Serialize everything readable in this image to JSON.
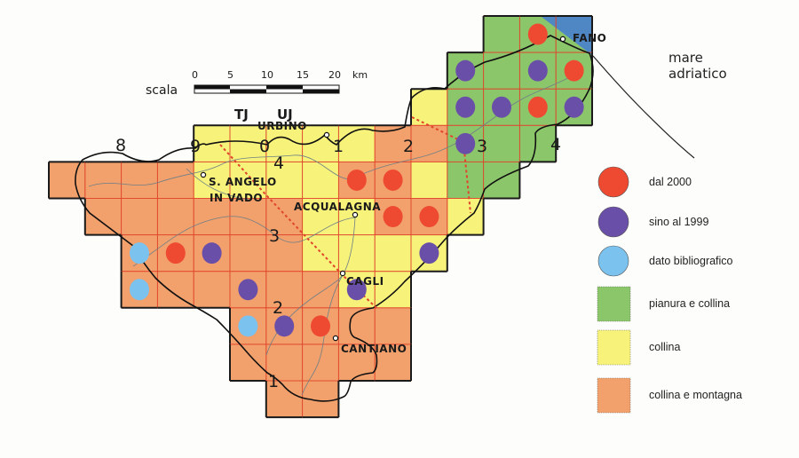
{
  "map": {
    "colors": {
      "pianura_e_collina": "#8cc66a",
      "collina": "#f6f27a",
      "collina_e_montagna": "#f2a06c",
      "sea": "#4f86c4",
      "dal_2000": "#ee4a32",
      "sino_al_1999": "#6a4fa8",
      "dato_bibliografico": "#7cc2ef",
      "grid_line": "#e0452c"
    },
    "cells": [
      "............GGG.",
      "...........GGGG.",
      "..........YGGGG.",
      "....YYYYYOOGGG..",
      "OOOOYYYYOOYGG...",
      ".OOOOOOYYOOY....",
      "..OOOOOYYYY.....",
      "..OOOOOOYY......",
      ".....OOOOO......",
      ".....OOOOO......",
      "......OO........"
    ],
    "cell_key": {
      "G": "pianura e collina",
      "Y": "collina",
      "O": "collina e montagna"
    },
    "records": {
      "dal_2000": [
        [
          13,
          0
        ],
        [
          14,
          1
        ],
        [
          13,
          2
        ],
        [
          8,
          4
        ],
        [
          9,
          4
        ],
        [
          9,
          5
        ],
        [
          10,
          5
        ],
        [
          3,
          6
        ],
        [
          7,
          8
        ]
      ],
      "sino_al_1999": [
        [
          11,
          1
        ],
        [
          13,
          1
        ],
        [
          11,
          2
        ],
        [
          12,
          2
        ],
        [
          14,
          2
        ],
        [
          11,
          3
        ],
        [
          4,
          6
        ],
        [
          10,
          6
        ],
        [
          5,
          7
        ],
        [
          8,
          7
        ],
        [
          6,
          8
        ]
      ],
      "dato_bibliografico": [
        [
          2,
          6
        ],
        [
          2,
          7
        ],
        [
          5,
          8
        ]
      ]
    },
    "scale": {
      "label": "scala",
      "ticks": [
        "0",
        "5",
        "10",
        "15",
        "20"
      ],
      "unit": "km"
    },
    "zones": [
      "TJ",
      "UJ"
    ],
    "grid_col_numbers": [
      "8",
      "9",
      "0",
      "1",
      "2",
      "3",
      "4"
    ],
    "grid_row_numbers": [
      "4",
      "3",
      "2",
      "1"
    ],
    "towns": {
      "urbino": "URBINO",
      "fano": "FANO",
      "sant_angelo_1": "S. ANGELO",
      "sant_angelo_2": "IN VADO",
      "acqualagna": "ACQUALAGNA",
      "cagli": "CAGLI",
      "cantiano": "CANTIANO"
    },
    "sea_label": [
      "mare",
      "adriatico"
    ]
  },
  "legend": [
    {
      "label": "dal 2000",
      "shape": "circle",
      "color": "#ee4a32"
    },
    {
      "label": "sino al 1999",
      "shape": "circle",
      "color": "#6a4fa8"
    },
    {
      "label": "dato bibliografico",
      "shape": "circle",
      "color": "#7cc2ef"
    },
    {
      "label": "pianura e collina",
      "shape": "square",
      "color": "#8cc66a"
    },
    {
      "label": "collina",
      "shape": "square",
      "color": "#f6f27a"
    },
    {
      "label": "collina e montagna",
      "shape": "square",
      "color": "#f2a06c"
    }
  ]
}
